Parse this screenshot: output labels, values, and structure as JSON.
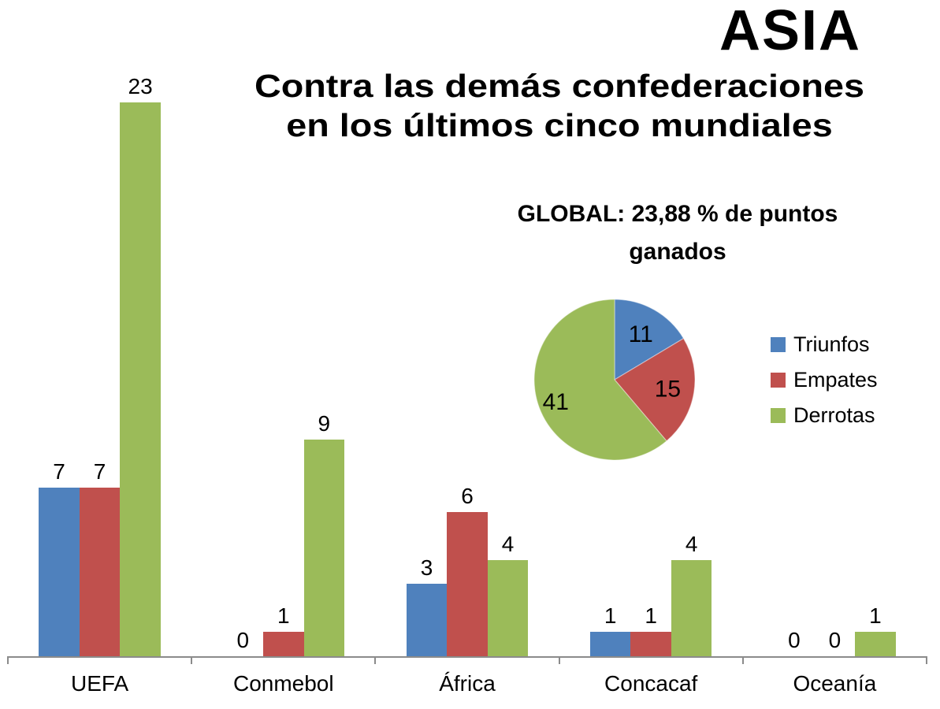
{
  "header": {
    "title": "ASIA",
    "subtitle_lines": [
      "Contra las demás confederaciones",
      "en los últimos cinco mundiales"
    ]
  },
  "global_label": {
    "lines": [
      "GLOBAL: 23,88 % de puntos",
      "ganados"
    ]
  },
  "colors": {
    "triunfos": "#4F81BD",
    "empates": "#C0504D",
    "derrotas": "#9BBB59",
    "axis": "#8B8B8B",
    "text": "#000000"
  },
  "legend": [
    {
      "label": "Triunfos",
      "color_key": "triunfos"
    },
    {
      "label": "Empates",
      "color_key": "empates"
    },
    {
      "label": "Derrotas",
      "color_key": "derrotas"
    }
  ],
  "chart_data": [
    {
      "type": "bar",
      "title": "ASIA - Contra las demás confederaciones en los últimos cinco mundiales",
      "categories": [
        "UEFA",
        "Conmebol",
        "África",
        "Concacaf",
        "Oceanía"
      ],
      "series": [
        {
          "name": "Triunfos",
          "color_key": "triunfos",
          "values": [
            7,
            0,
            3,
            1,
            0
          ]
        },
        {
          "name": "Empates",
          "color_key": "empates",
          "values": [
            7,
            1,
            6,
            1,
            0
          ]
        },
        {
          "name": "Derrotas",
          "color_key": "derrotas",
          "values": [
            23,
            9,
            4,
            4,
            1
          ]
        }
      ],
      "ylim": [
        0,
        23
      ],
      "gridlines": false,
      "data_labels": true,
      "legend_position": "right-middle"
    },
    {
      "type": "pie",
      "title": "GLOBAL: 23,88 % de puntos ganados",
      "labels": [
        "Triunfos",
        "Empates",
        "Derrotas"
      ],
      "values": [
        11,
        15,
        41
      ],
      "start_angle_deg": 0,
      "direction": "clockwise"
    }
  ]
}
